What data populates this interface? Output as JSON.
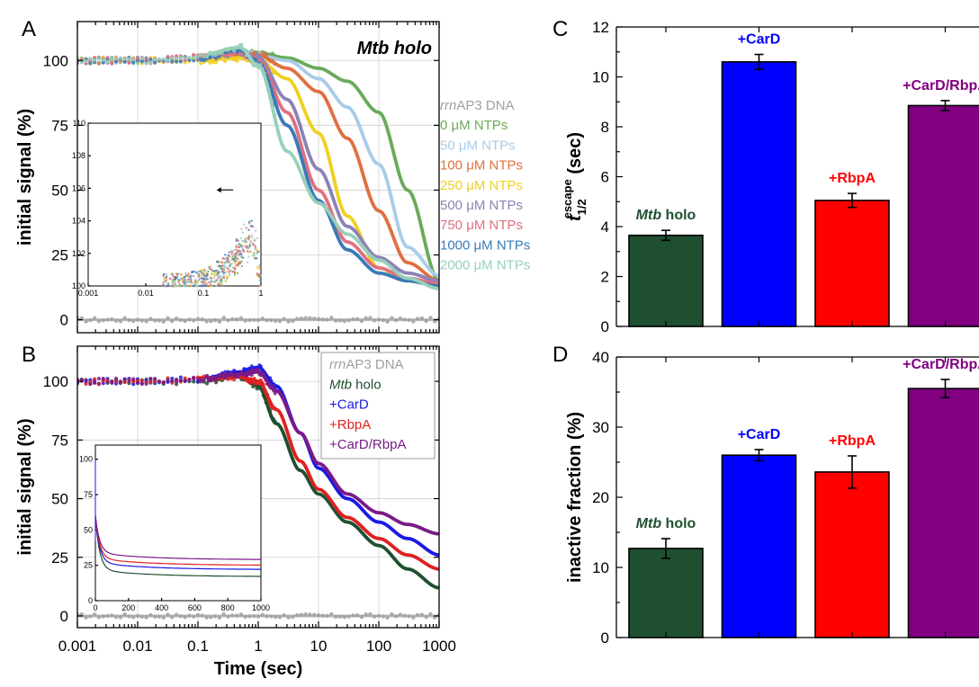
{
  "chart_data": [
    {
      "panel": "A",
      "type": "scatter",
      "title": "Mtb holo",
      "xlabel": "",
      "ylabel": "initial signal (%)",
      "xscale": "log",
      "xlim": [
        0.001,
        1000
      ],
      "ylim": [
        -5,
        115
      ],
      "yticks": [
        "0",
        "25",
        "50",
        "75",
        "100"
      ],
      "legend_position": "right",
      "series": [
        {
          "name": "rrnAP3 DNA",
          "name_italic": "rrn",
          "name_rest": "AP3 DNA",
          "color": "#a0a0a0",
          "x": [
            0.001,
            0.01,
            0.1,
            1,
            10,
            100,
            1000
          ],
          "y": [
            0,
            0,
            0,
            0,
            0,
            0,
            0
          ]
        },
        {
          "name": "0 μM NTPs",
          "color": "#6aaa5a",
          "x": [
            0.001,
            0.01,
            0.1,
            0.5,
            1,
            3,
            10,
            30,
            100,
            300,
            1000
          ],
          "y": [
            100,
            100,
            101,
            103,
            103,
            101,
            97,
            92,
            80,
            50,
            15
          ]
        },
        {
          "name": "50 μM NTPs",
          "color": "#a9cce8",
          "x": [
            0.001,
            0.01,
            0.1,
            0.5,
            1,
            3,
            10,
            30,
            100,
            300,
            1000
          ],
          "y": [
            100,
            100,
            101,
            103,
            102,
            100,
            93,
            82,
            60,
            28,
            17
          ]
        },
        {
          "name": "100 μM NTPs",
          "color": "#e07040",
          "x": [
            0.001,
            0.01,
            0.1,
            0.5,
            1,
            3,
            10,
            30,
            100,
            300,
            1000
          ],
          "y": [
            100,
            100,
            101,
            102,
            102,
            97,
            88,
            70,
            42,
            22,
            15
          ]
        },
        {
          "name": "250 μM NTPs",
          "color": "#f0d020",
          "x": [
            0.001,
            0.01,
            0.1,
            0.5,
            1,
            3,
            10,
            30,
            100,
            300,
            1000
          ],
          "y": [
            100,
            100,
            100,
            101,
            100,
            93,
            72,
            40,
            20,
            15,
            13
          ]
        },
        {
          "name": "500 μM NTPs",
          "color": "#8c82b8",
          "x": [
            0.001,
            0.01,
            0.1,
            0.5,
            1,
            3,
            10,
            30,
            100,
            300,
            1000
          ],
          "y": [
            100,
            100,
            101,
            103,
            101,
            85,
            58,
            36,
            24,
            18,
            15
          ]
        },
        {
          "name": "750 μM NTPs",
          "color": "#e07080",
          "x": [
            0.001,
            0.01,
            0.1,
            0.5,
            1,
            3,
            10,
            30,
            100,
            300,
            1000
          ],
          "y": [
            100,
            100,
            101,
            103,
            100,
            80,
            50,
            30,
            20,
            16,
            14
          ]
        },
        {
          "name": "1000 μM NTPs",
          "color": "#3a7ab8",
          "x": [
            0.001,
            0.01,
            0.1,
            0.5,
            1,
            3,
            10,
            30,
            100,
            300,
            1000
          ],
          "y": [
            100,
            100,
            101,
            104,
            99,
            75,
            46,
            27,
            18,
            15,
            13
          ]
        },
        {
          "name": "2000 μM NTPs",
          "color": "#98d0b8",
          "x": [
            0.001,
            0.01,
            0.1,
            0.5,
            1,
            3,
            10,
            30,
            100,
            300,
            1000
          ],
          "y": [
            100,
            100,
            102,
            105,
            98,
            65,
            45,
            33,
            23,
            16,
            12
          ]
        }
      ],
      "inset": {
        "xscale": "log",
        "xlim": [
          0.001,
          1
        ],
        "ylim": [
          100,
          110
        ],
        "xticks": [
          "0.001",
          "0.01",
          "0.1",
          "1"
        ],
        "yticks": [
          "100",
          "102",
          "104",
          "106",
          "108",
          "110"
        ]
      }
    },
    {
      "panel": "B",
      "type": "scatter",
      "xlabel": "Time (sec)",
      "ylabel": "initial signal (%)",
      "xscale": "log",
      "xlim": [
        0.001,
        1000
      ],
      "ylim": [
        -5,
        115
      ],
      "xticks": [
        "0.001",
        "0.01",
        "0.1",
        "1",
        "10",
        "100",
        "1000"
      ],
      "yticks": [
        "0",
        "25",
        "50",
        "75",
        "100"
      ],
      "legend_position": "top-right",
      "series": [
        {
          "name": "rrnAP3 DNA",
          "name_italic": "rrn",
          "name_rest": "AP3 DNA",
          "color": "#a0a0a0",
          "x": [
            0.001,
            0.01,
            0.1,
            1,
            10,
            100,
            1000
          ],
          "y": [
            0,
            0,
            0,
            0,
            0,
            0,
            0
          ]
        },
        {
          "name": "Mtb holo",
          "name_italic": "Mtb",
          "name_rest": " holo",
          "color": "#1e5030",
          "x": [
            0.001,
            0.01,
            0.1,
            0.5,
            1,
            2,
            5,
            10,
            30,
            100,
            300,
            1000
          ],
          "y": [
            100,
            100,
            100,
            102,
            98,
            82,
            62,
            52,
            40,
            30,
            20,
            12
          ]
        },
        {
          "name": "+CarD",
          "color": "#1a1ae6",
          "x": [
            0.001,
            0.01,
            0.1,
            0.5,
            1,
            2,
            5,
            10,
            30,
            100,
            300,
            1000
          ],
          "y": [
            100,
            100,
            101,
            104,
            106,
            98,
            78,
            63,
            50,
            40,
            33,
            26
          ]
        },
        {
          "name": "+RbpA",
          "color": "#e02020",
          "x": [
            0.001,
            0.01,
            0.1,
            0.5,
            1,
            2,
            5,
            10,
            30,
            100,
            300,
            1000
          ],
          "y": [
            100,
            100,
            101,
            102,
            100,
            88,
            66,
            54,
            42,
            33,
            26,
            20
          ]
        },
        {
          "name": "+CarD/RbpA",
          "color": "#7a1a88",
          "x": [
            0.001,
            0.01,
            0.1,
            0.5,
            1,
            2,
            5,
            10,
            30,
            100,
            300,
            1000
          ],
          "y": [
            100,
            100,
            101,
            103,
            104,
            96,
            78,
            65,
            52,
            44,
            39,
            35
          ]
        }
      ],
      "inset": {
        "xscale": "linear",
        "xlim": [
          0,
          1000
        ],
        "ylim": [
          0,
          110
        ],
        "xticks": [
          "0",
          "200",
          "400",
          "600",
          "800",
          "1000"
        ],
        "yticks": [
          "0",
          "25",
          "50",
          "75",
          "100"
        ]
      }
    },
    {
      "panel": "C",
      "type": "bar",
      "xlabel": "",
      "ylabel": "t1/2 escape (sec)",
      "ylabel_main": "t",
      "ylabel_sub": "1/2",
      "ylabel_sup": "escape",
      "ylabel_unit": " (sec)",
      "ylim": [
        0,
        12
      ],
      "yticks": [
        "0",
        "2",
        "4",
        "6",
        "8",
        "10",
        "12"
      ],
      "categories": [
        "Mtb holo",
        "+CarD",
        "+RbpA",
        "+CarD/RbpA"
      ],
      "category_italic": [
        "Mtb",
        "",
        "",
        ""
      ],
      "category_rest": [
        " holo",
        "+CarD",
        "+RbpA",
        "+CarD/RbpA"
      ],
      "values": [
        3.65,
        10.6,
        5.05,
        8.85
      ],
      "errors": [
        0.2,
        0.3,
        0.28,
        0.2
      ],
      "colors": [
        "#1e5030",
        "#0000ff",
        "#ff0000",
        "#800080"
      ],
      "label_colors": [
        "#1e5030",
        "#0000ff",
        "#ff0000",
        "#800080"
      ]
    },
    {
      "panel": "D",
      "type": "bar",
      "xlabel": "",
      "ylabel": "inactive fraction (%)",
      "ylim": [
        0,
        40
      ],
      "yticks": [
        "0",
        "10",
        "20",
        "30",
        "40"
      ],
      "categories": [
        "Mtb holo",
        "+CarD",
        "+RbpA",
        "+CarD/RbpA"
      ],
      "category_italic": [
        "Mtb",
        "",
        "",
        ""
      ],
      "category_rest": [
        " holo",
        "+CarD",
        "+RbpA",
        "+CarD/RbpA"
      ],
      "values": [
        12.7,
        26.0,
        23.6,
        35.5
      ],
      "errors": [
        1.4,
        0.8,
        2.3,
        1.3
      ],
      "colors": [
        "#1e5030",
        "#0000ff",
        "#ff0000",
        "#800080"
      ],
      "label_colors": [
        "#1e5030",
        "#0000ff",
        "#ff0000",
        "#800080"
      ]
    }
  ]
}
